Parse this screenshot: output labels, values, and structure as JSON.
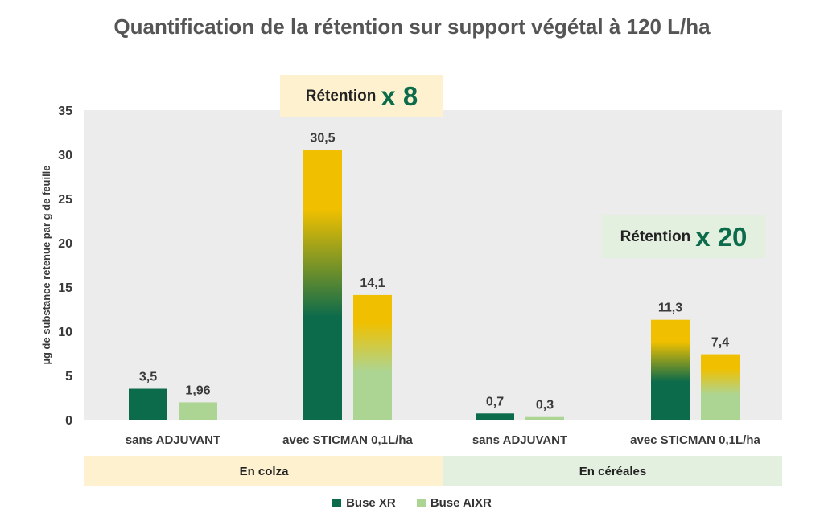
{
  "title": "Quantification de la rétention sur support végétal à 120 L/ha",
  "chart_data": {
    "type": "bar",
    "title": "Quantification de la rétention sur support végétal à 120 L/ha",
    "ylabel": "µg de substance retenue par g de feuille",
    "xlabel": "",
    "ylim": [
      0,
      35
    ],
    "yticks": [
      0,
      5,
      10,
      15,
      20,
      25,
      30,
      35
    ],
    "grid": false,
    "legend_position": "bottom",
    "categories": [
      "sans ADJUVANT",
      "avec STICMAN 0,1L/ha",
      "sans ADJUVANT",
      "avec STICMAN 0,1L/ha"
    ],
    "groups": [
      {
        "label": "En colza",
        "categories": [
          0,
          1
        ],
        "color": "#fdf1cf"
      },
      {
        "label": "En céréales",
        "categories": [
          2,
          3
        ],
        "color": "#e3f0df"
      }
    ],
    "series": [
      {
        "name": "Buse XR",
        "values": [
          3.5,
          30.5,
          0.7,
          11.3
        ],
        "labels": [
          "3,5",
          "30,5",
          "0,7",
          "11,3"
        ],
        "color": "#0c6b4b"
      },
      {
        "name": "Buse AIXR",
        "values": [
          1.96,
          14.1,
          0.3,
          7.4
        ],
        "labels": [
          "1,96",
          "14,1",
          "0,3",
          "7,4"
        ],
        "color": "#acd593"
      }
    ],
    "gradient_top_color": "#f0c000",
    "annotations": [
      {
        "prefix": "Rétention",
        "multiplier": "x 8",
        "group": "En colza",
        "color": "#fdf1cf"
      },
      {
        "prefix": "Rétention",
        "multiplier": "x 20",
        "group": "En céréales",
        "color": "#e3f0df"
      }
    ]
  }
}
